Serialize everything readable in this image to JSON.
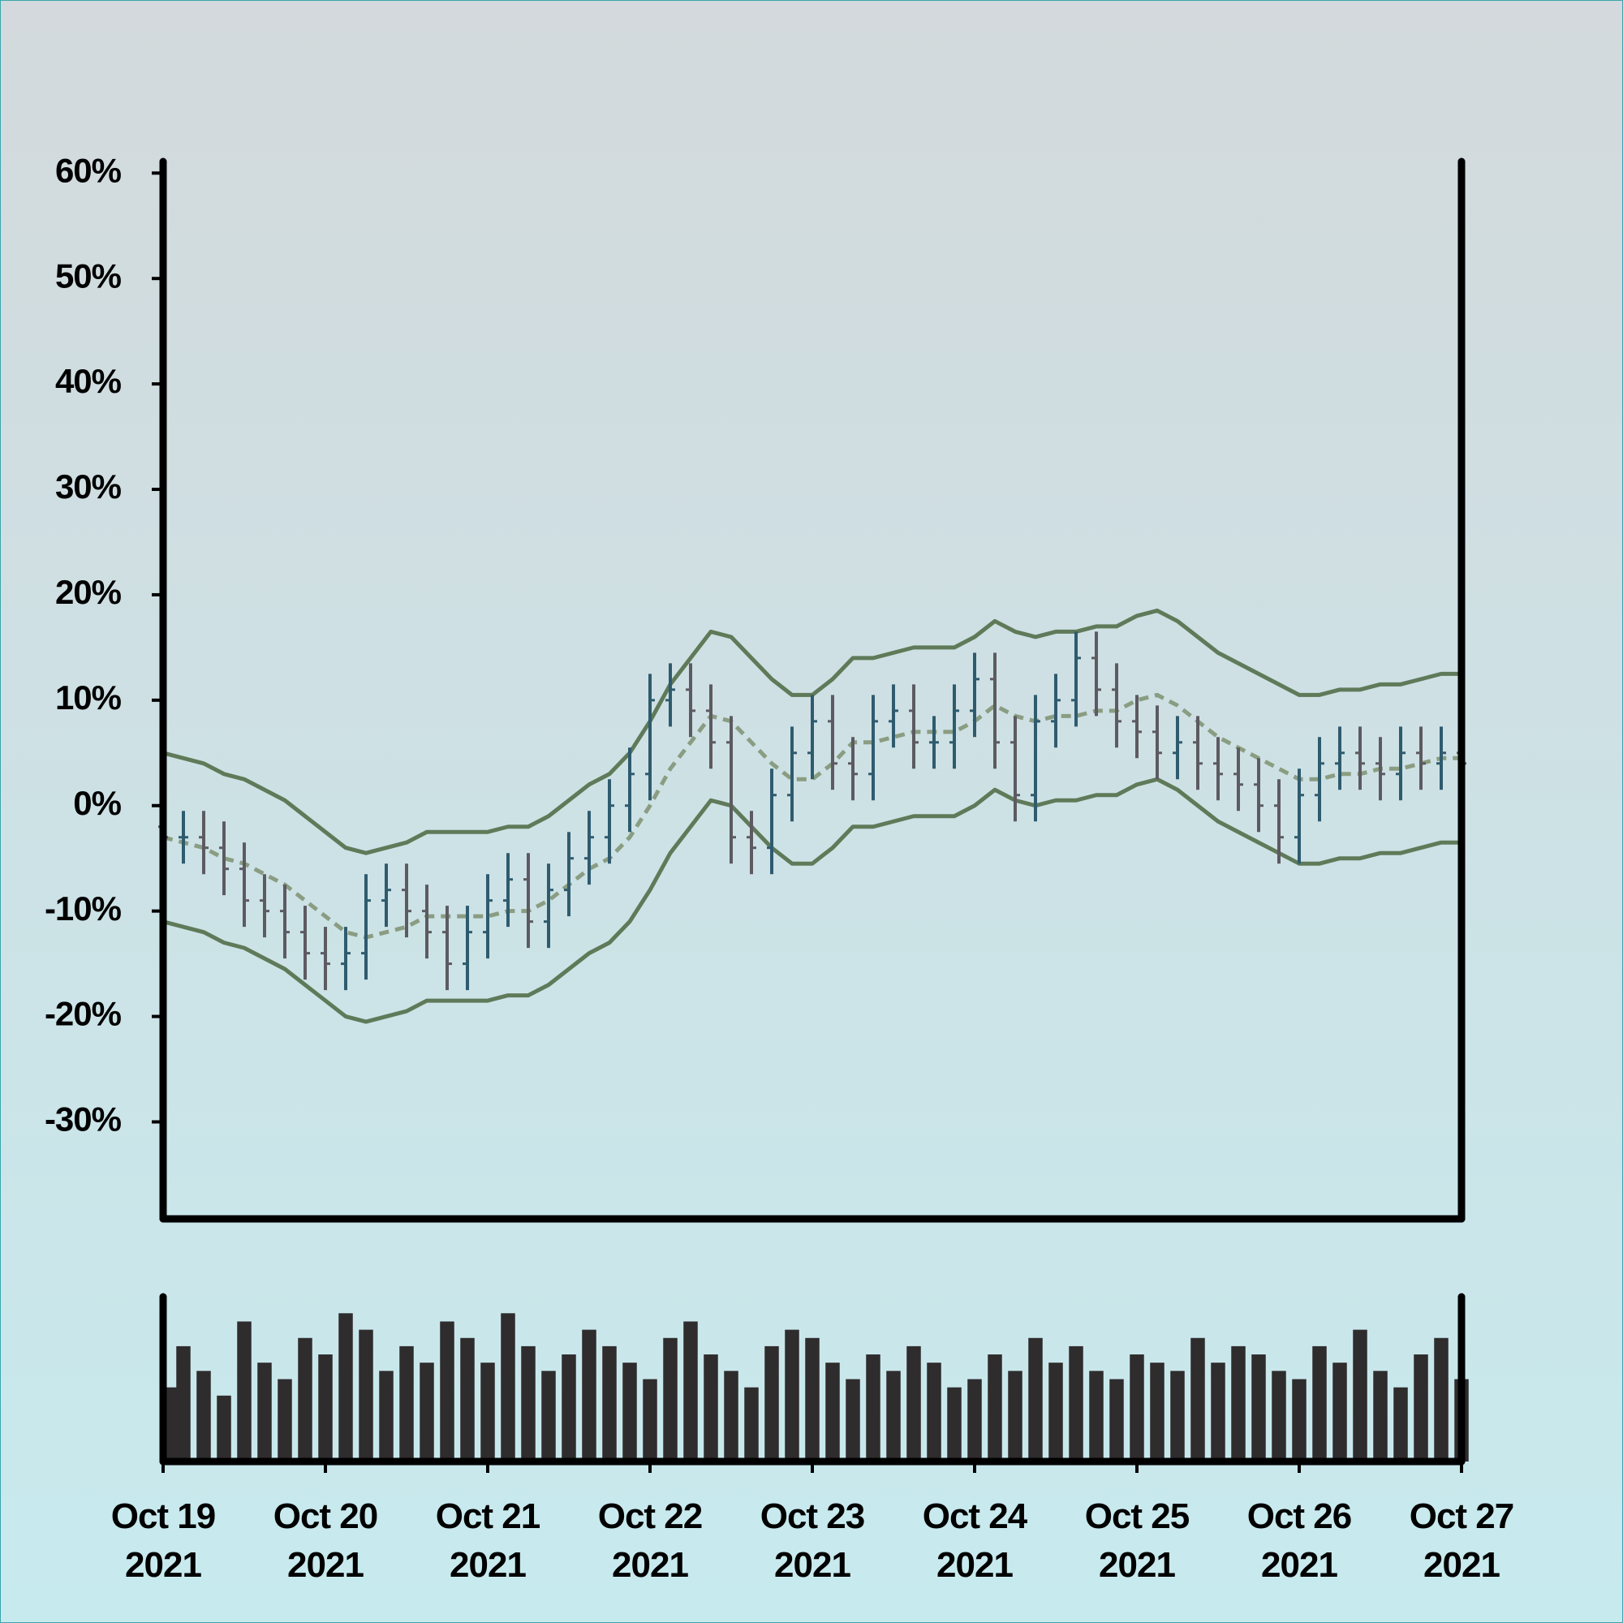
{
  "chart_data": {
    "type": "ohlc",
    "x": [
      0,
      0.125,
      0.25,
      0.375,
      0.5,
      0.625,
      0.75,
      0.875,
      1,
      1.125,
      1.25,
      1.375,
      1.5,
      1.625,
      1.75,
      1.875,
      2,
      2.125,
      2.25,
      2.375,
      2.5,
      2.625,
      2.75,
      2.875,
      3,
      3.125,
      3.25,
      3.375,
      3.5,
      3.625,
      3.75,
      3.875,
      4,
      4.125,
      4.25,
      4.375,
      4.5,
      4.625,
      4.75,
      4.875,
      5,
      5.125,
      5.25,
      5.375,
      5.5,
      5.625,
      5.75,
      5.875,
      6,
      6.125,
      6.25,
      6.375,
      6.5,
      6.625,
      6.75,
      6.875,
      7,
      7.125,
      7.25,
      7.375,
      7.5,
      7.625,
      7.75,
      7.875,
      8
    ],
    "open": [
      -2,
      -3,
      -3,
      -4,
      -6,
      -9,
      -10,
      -12,
      -14,
      -15,
      -14,
      -9,
      -8,
      -10,
      -12,
      -15,
      -12,
      -9,
      -7,
      -11,
      -8,
      -5,
      -3,
      0,
      3,
      10,
      11,
      9,
      6,
      -3,
      -4,
      1,
      5,
      8,
      4,
      3,
      8,
      9,
      6,
      6,
      9,
      12,
      6,
      1,
      8,
      10,
      14,
      11,
      8,
      7,
      5,
      6,
      4,
      3,
      2,
      0,
      -3,
      1,
      4,
      5,
      4,
      3,
      5,
      4,
      5
    ],
    "high": [
      0.5,
      -0.5,
      -0.5,
      -1.5,
      -3.5,
      -6.5,
      -7.5,
      -9.5,
      -11.5,
      -11.5,
      -6.5,
      -5.5,
      -5.5,
      -7.5,
      -9.5,
      -9.5,
      -6.5,
      -4.5,
      -4.5,
      -5.5,
      -2.5,
      -0.5,
      2.5,
      5.5,
      12.5,
      13.5,
      13.5,
      11.5,
      8.5,
      -0.5,
      3.5,
      7.5,
      10.5,
      10.5,
      6.5,
      10.5,
      11.5,
      11.5,
      8.5,
      11.5,
      14.5,
      14.5,
      8.5,
      10.5,
      12.5,
      16.5,
      16.5,
      13.5,
      10.5,
      9.5,
      8.5,
      8.5,
      6.5,
      5.5,
      4.5,
      2.5,
      3.5,
      6.5,
      7.5,
      7.5,
      6.5,
      7.5,
      7.5,
      7.5,
      7.5
    ],
    "low": [
      -5.5,
      -5.5,
      -6.5,
      -8.5,
      -11.5,
      -12.5,
      -14.5,
      -16.5,
      -17.5,
      -17.5,
      -16.5,
      -11.5,
      -12.5,
      -14.5,
      -17.5,
      -17.5,
      -14.5,
      -11.5,
      -13.5,
      -13.5,
      -10.5,
      -7.5,
      -5.5,
      -2.5,
      0.5,
      7.5,
      6.5,
      3.5,
      -5.5,
      -6.5,
      -6.5,
      -1.5,
      2.5,
      1.5,
      0.5,
      0.5,
      5.5,
      3.5,
      3.5,
      3.5,
      6.5,
      3.5,
      -1.5,
      -1.5,
      5.5,
      7.5,
      8.5,
      5.5,
      4.5,
      2.5,
      2.5,
      1.5,
      0.5,
      -0.5,
      -2.5,
      -5.5,
      -5.5,
      -1.5,
      1.5,
      1.5,
      0.5,
      0.5,
      1.5,
      1.5,
      1.5
    ],
    "close": [
      -3,
      -3,
      -4,
      -6,
      -9,
      -10,
      -12,
      -14,
      -15,
      -14,
      -9,
      -8,
      -10,
      -12,
      -15,
      -12,
      -9,
      -7,
      -11,
      -8,
      -5,
      -3,
      0,
      3,
      10,
      11,
      9,
      6,
      -3,
      -4,
      1,
      5,
      8,
      4,
      3,
      8,
      9,
      6,
      6,
      9,
      12,
      6,
      1,
      8,
      10,
      14,
      11,
      8,
      7,
      5,
      6,
      4,
      3,
      2,
      0,
      -3,
      1,
      4,
      5,
      4,
      3,
      5,
      4,
      5,
      4
    ],
    "middle": [
      -3,
      -3.5,
      -4,
      -5,
      -5.5,
      -6.5,
      -7.5,
      -9,
      -10.5,
      -12,
      -12.5,
      -12,
      -11.5,
      -10.5,
      -10.5,
      -10.5,
      -10.5,
      -10,
      -10,
      -9,
      -7.5,
      -6,
      -5,
      -3,
      0,
      3.5,
      6,
      8.5,
      8,
      6,
      4,
      2.5,
      2.5,
      4,
      6,
      6,
      6.5,
      7,
      7,
      7,
      8,
      9.5,
      8.5,
      8,
      8.5,
      8.5,
      9,
      9,
      10,
      10.5,
      9.5,
      8,
      6.5,
      5.5,
      4.5,
      3.5,
      2.5,
      2.5,
      3,
      3,
      3.5,
      3.5,
      4,
      4.5,
      4.5
    ],
    "upper": [
      5,
      4.5,
      4,
      3,
      2.5,
      1.5,
      0.5,
      -1,
      -2.5,
      -4,
      -4.5,
      -4,
      -3.5,
      -2.5,
      -2.5,
      -2.5,
      -2.5,
      -2,
      -2,
      -1,
      0.5,
      2,
      3,
      5,
      8,
      11.5,
      14,
      16.5,
      16,
      14,
      12,
      10.5,
      10.5,
      12,
      14,
      14,
      14.5,
      15,
      15,
      15,
      16,
      17.5,
      16.5,
      16,
      16.5,
      16.5,
      17,
      17,
      18,
      18.5,
      17.5,
      16,
      14.5,
      13.5,
      12.5,
      11.5,
      10.5,
      10.5,
      11,
      11,
      11.5,
      11.5,
      12,
      12.5,
      12.5
    ],
    "lower": [
      -11,
      -11.5,
      -12,
      -13,
      -13.5,
      -14.5,
      -15.5,
      -17,
      -18.5,
      -20,
      -20.5,
      -20,
      -19.5,
      -18.5,
      -18.5,
      -18.5,
      -18.5,
      -18,
      -18,
      -17,
      -15.5,
      -14,
      -13,
      -11,
      -8,
      -4.5,
      -2,
      0.5,
      0,
      -2,
      -4,
      -5.5,
      -5.5,
      -4,
      -2,
      -2,
      -1.5,
      -1,
      -1,
      -1,
      0,
      1.5,
      0.5,
      0,
      0.5,
      0.5,
      1,
      1,
      2,
      2.5,
      1.5,
      0,
      -1.5,
      -2.5,
      -3.5,
      -4.5,
      -5.5,
      -5.5,
      -5,
      -5,
      -4.5,
      -4.5,
      -4,
      -3.5,
      -3.5
    ],
    "volume": [
      45,
      70,
      55,
      40,
      85,
      60,
      50,
      75,
      65,
      90,
      80,
      55,
      70,
      60,
      85,
      75,
      60,
      90,
      70,
      55,
      65,
      80,
      70,
      60,
      50,
      75,
      85,
      65,
      55,
      45,
      70,
      80,
      75,
      60,
      50,
      65,
      55,
      70,
      60,
      45,
      50,
      65,
      55,
      75,
      60,
      70,
      55,
      50,
      65,
      60,
      55,
      75,
      60,
      70,
      65,
      55,
      50,
      70,
      60,
      80,
      55,
      45,
      65,
      75,
      50
    ],
    "xlim": [
      0,
      8
    ],
    "xticks": [
      {
        "value": 0,
        "label": "Oct 19 2021"
      },
      {
        "value": 1,
        "label": "Oct 20 2021"
      },
      {
        "value": 2,
        "label": "Oct 21 2021"
      },
      {
        "value": 3,
        "label": "Oct 22 2021"
      },
      {
        "value": 4,
        "label": "Oct 23 2021"
      },
      {
        "value": 5,
        "label": "Oct 24 2021"
      },
      {
        "value": 6,
        "label": "Oct 25 2021"
      },
      {
        "value": 7,
        "label": "Oct 26 2021"
      },
      {
        "value": 8,
        "label": "Oct 27 2021"
      }
    ],
    "ylim": [
      -39.2,
      61.1
    ],
    "yticks": [
      {
        "value": 60,
        "label": "60%"
      },
      {
        "value": 50,
        "label": "50%"
      },
      {
        "value": 40,
        "label": "40%"
      },
      {
        "value": 30,
        "label": "30%"
      },
      {
        "value": 20,
        "label": "20%"
      },
      {
        "value": 10,
        "label": "10%"
      },
      {
        "value": 0,
        "label": "0%"
      },
      {
        "value": -10,
        "label": "-10%"
      },
      {
        "value": -20,
        "label": "-20%"
      },
      {
        "value": -30,
        "label": "-30%"
      }
    ],
    "volume_ylim": [
      0,
      100
    ],
    "up_color": "#2f5b6e",
    "down_color": "#5d5a62",
    "band_color": "#5f7a59",
    "middle_color": "#8a9d82",
    "volume_color": "#2f2c2e"
  }
}
